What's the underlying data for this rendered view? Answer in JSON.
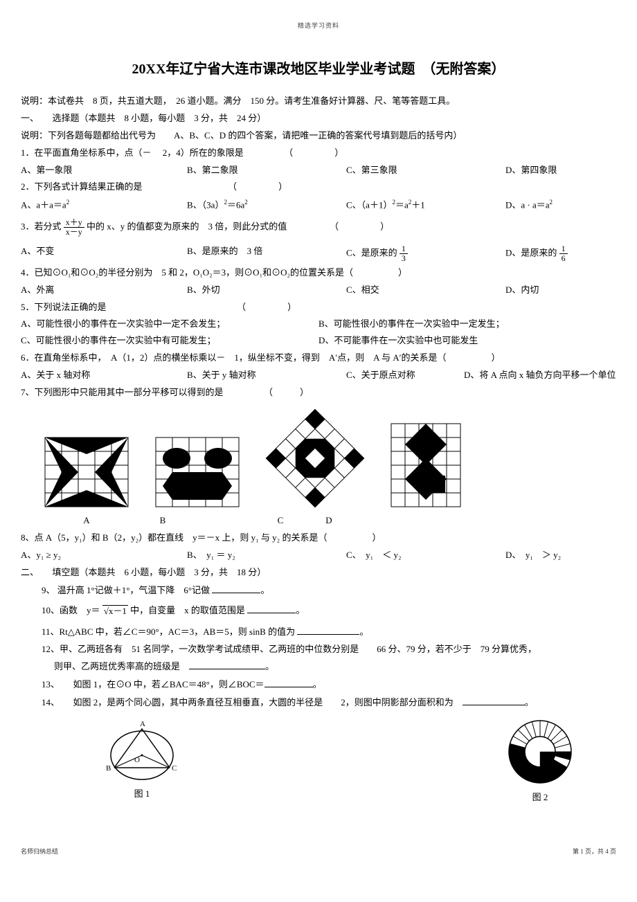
{
  "header_small": "精选学习资料",
  "title": "20XX年辽宁省大连市课改地区毕业学业考试题　（无附答案）",
  "intro1": "说明：本试卷共　8 页，共五道大题，　26 道小题。满分　150 分。请考生准备好计算器、尺、笔等答题工具。",
  "section1_head": "一、　　选择题（本题共　8 小题，每小题　3 分，共　24 分）",
  "intro2": "说明：下列各题每题都给出代号为　　A、B、C、D 的四个答案，请把唯一正确的答案代号填到题后的括号内）",
  "q1": "1．在平面直角坐标系中，点（－　 2，4）所在的象限是",
  "q1A": "A、第一象限",
  "q1B": "B、第二象限",
  "q1C": "C、第三象限",
  "q1D": "D、第四象限",
  "q2": "2．下列各式计算结果正确的是",
  "q2A_pre": "A、a＋a＝a",
  "q2B_pre": "B、（3a）",
  "q2B_post": "＝6a",
  "q2C_pre": "C、（a＋1）",
  "q2C_post": "＝a",
  "q2C_end": "＋1",
  "q2D_pre": "D、a · a＝a",
  "q3_pre": "3．若分式 ",
  "q3_num": "x＋y",
  "q3_den": "x－y",
  "q3_post": " 中的 x、y 的值都变为原来的　3 倍，则此分式的值",
  "q3A": "A、不变",
  "q3B": "B、是原来的　3 倍",
  "q3C_pre": "C、是原来的 ",
  "q3C_num": "1",
  "q3C_den": "3",
  "q3D_pre": "D、是原来的 ",
  "q3D_num": "1",
  "q3D_den": "6",
  "q4": "4．已知⊙O₁和⊙O₂的半径分别为　5 和 2，O₁O₂＝3，则⊙O₁和⊙O₂的位置关系是（",
  "q4A": "A、外离",
  "q4B": "B、外切",
  "q4C": "C、相交",
  "q4D": "D、内切",
  "q5": "5．下列说法正确的是",
  "q5A": "A、可能性很小的事件在一次实验中一定不会发生；",
  "q5B": "B、可能性很小的事件在一次实验中一定发生；",
  "q5C": "C、可能性很小的事件在一次实验中有可能发生；",
  "q5D": "D、不可能事件在一次实验中也可能发生",
  "q6": "6．在直角坐标系中，　A（1，2）点的横坐标乘以－　1，纵坐标不变，得到　A′点，则　A 与 A′的关系是（",
  "q6A": "A、关于 x 轴对称",
  "q6B": "B、关于 y 轴对称",
  "q6C": "C、关于原点对称",
  "q6D": "D、将 A 点向 x 轴负方向平移一个单位",
  "q7": "7、下列图形中只能用其中一部分平移可以得到的是　　　　　（　　　）",
  "q7labA": "A",
  "q7labB": "B",
  "q7labC": "C",
  "q7labD": "D",
  "q8": "8、点 A（5，y₁）和 B（2，y₂）都在直线　y＝－x 上，则 y₁ 与 y₂ 的关系是（",
  "q8A": "A、y₁ ≥ y₂",
  "q8B": "B、　y₁ ＝ y₂",
  "q8C": "C、　y₁　＜ y₂",
  "q8D": "D、　y₁　＞ y₂",
  "section2_head": "二、　　填空题（本题共　6 小题，每小题　3 分，共　18 分）",
  "q9": "9、 温升高 1°记做＋1°，气温下降　6°记做 ",
  "q10_pre": "10、函数　y＝",
  "q10_rad": "x－1",
  "q10_post": " 中，自变量　x 的取值范围是 ",
  "q11": "11、Rt△ABC 中，若∠C＝90°，AC＝3，AB＝5，则 sinB 的值为 ",
  "q12a": "12、甲、乙两班各有　51 名同学，一次数学考试成绩甲、乙两班的中位数分别是　　66 分、79 分，若不少于　79 分算优秀，",
  "q12b": "则甲、乙两班优秀率高的班级是　",
  "q13": "13、　　如图 1，在⊙O 中，若∠BAC＝48°，则∠BOC＝",
  "q14": "14、　　如图 2，是两个同心圆，其中两条直径互相垂直，大圆的半径是　　2，则图中阴影部分面积和为　",
  "fig1cap": "图 1",
  "fig2cap": "图 2",
  "footer_left": "名师归纳总结",
  "footer_right": "第 1 页，共 4 页",
  "period": "。",
  "close_paren": "）",
  "open_paren": "（",
  "spacer": "　　　　　",
  "close_paren_only": "）"
}
